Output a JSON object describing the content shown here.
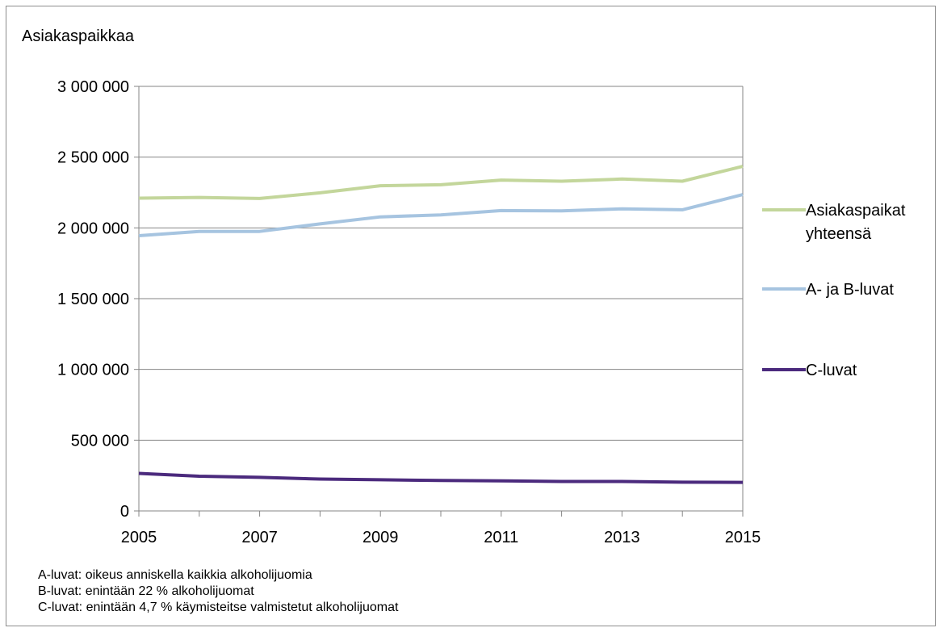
{
  "chart_data": {
    "type": "line",
    "ylabel": "Asiakaspaikkaa",
    "x": [
      2005,
      2006,
      2007,
      2008,
      2009,
      2010,
      2011,
      2012,
      2013,
      2014,
      2015
    ],
    "x_tick_labels": [
      "2005",
      "2007",
      "2009",
      "2011",
      "2013",
      "2015"
    ],
    "y_tick_labels": [
      "0",
      "500 000",
      "1 000 000",
      "1 500 000",
      "2 000 000",
      "2 500 000",
      "3 000 000"
    ],
    "ylim": [
      0,
      3000000
    ],
    "grid": "horizontal",
    "legend_position": "right",
    "series": [
      {
        "name": "Asiakaspaikat yhteensä",
        "name_lines": [
          "Asiakaspaikat",
          "yhteensä"
        ],
        "color": "#c3d69b",
        "values": [
          2210000,
          2215000,
          2208000,
          2248000,
          2298000,
          2305000,
          2338000,
          2330000,
          2345000,
          2330000,
          2435000
        ]
      },
      {
        "name": "A- ja B-luvat",
        "name_lines": [
          "A- ja B-luvat"
        ],
        "color": "#a6c4e0",
        "values": [
          1945000,
          1975000,
          1975000,
          2028000,
          2078000,
          2092000,
          2122000,
          2120000,
          2135000,
          2128000,
          2235000
        ]
      },
      {
        "name": "C-luvat",
        "name_lines": [
          "C-luvat"
        ],
        "color": "#4b2a7d",
        "values": [
          265000,
          245000,
          237000,
          225000,
          220000,
          215000,
          213000,
          208000,
          208000,
          203000,
          202000
        ]
      }
    ]
  },
  "notes": [
    "A-luvat: oikeus anniskella kaikkia alkoholijuomia",
    "B-luvat: enintään 22 % alkoholijuomat",
    "C-luvat: enintään 4,7 % käymisteitse valmistetut alkoholijuomat"
  ]
}
